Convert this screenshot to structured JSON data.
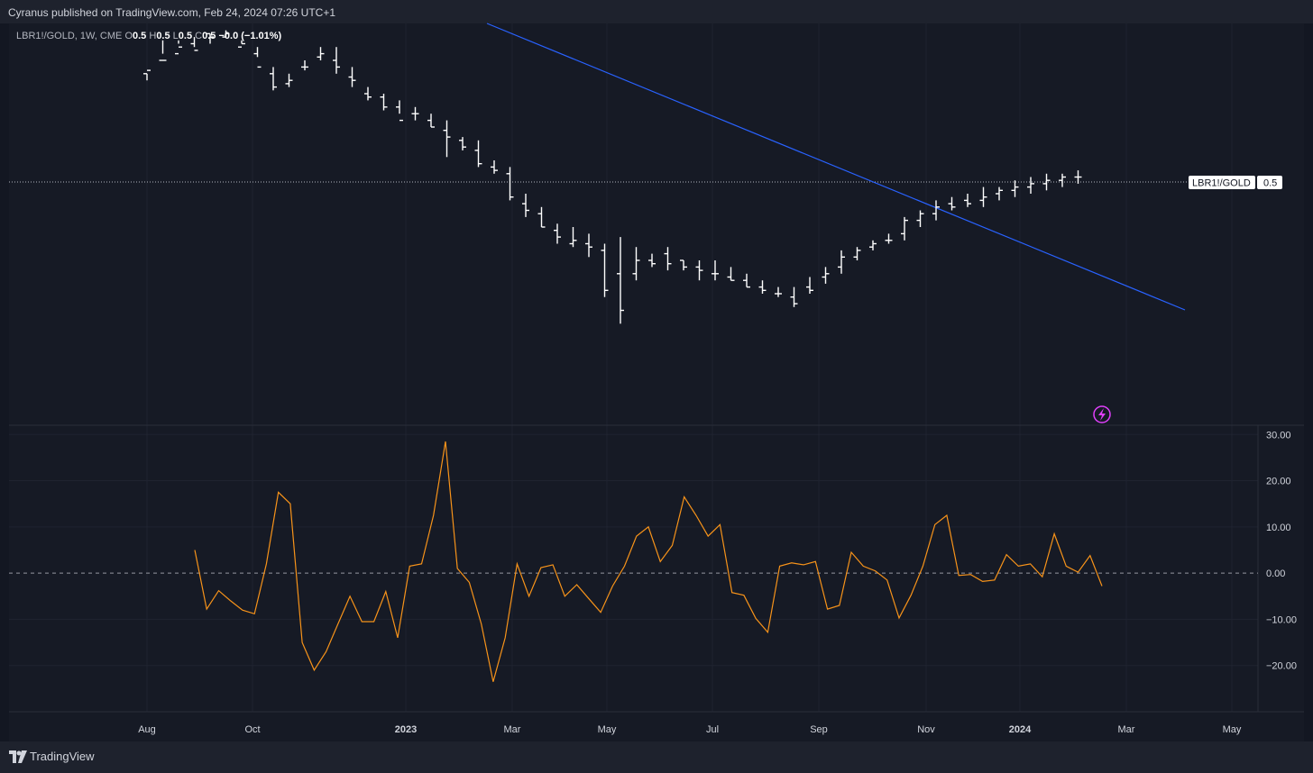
{
  "publisher": "Cyranus published on TradingView.com, Feb 24, 2024 07:26 UTC+1",
  "brand": "TradingView",
  "legend": {
    "symbol": "LBR1!/GOLD, 1W, CME",
    "o_label": "O",
    "o_value": "0.5",
    "h_label": "H",
    "h_value": "0.5",
    "l_label": "L",
    "l_value": "0.5",
    "c_label": "C",
    "c_value": "0.5",
    "change": "−0.0 (−1.01%)"
  },
  "price_label": {
    "name": "LBR1!/GOLD",
    "value": "0.5"
  },
  "colors": {
    "background": "#161a25",
    "bars": "#ffffff",
    "trendline": "#2962ff",
    "oscillator": "#f7931a",
    "grid": "#1f2330"
  },
  "icons": {
    "alert": "lightning-bolt-icon"
  },
  "chart_data": [
    {
      "type": "ohlc-bar",
      "symbol": "LBR1!/GOLD",
      "timeframe": "1W",
      "x_tick_labels": [
        "Aug",
        "Oct",
        "2023",
        "Mar",
        "May",
        "Jul",
        "Sep",
        "Nov",
        "2024",
        "Mar",
        "May"
      ],
      "last_value": 0.5,
      "bars_note": "weekly bars, relative values read from image (0 = lowest low, 100 = highest high)",
      "bars": [
        [
          86,
          86,
          84,
          87
        ],
        [
          90,
          96,
          92,
          90
        ],
        [
          92,
          96,
          95,
          94
        ],
        [
          95,
          97,
          94,
          93
        ],
        [
          98,
          98,
          95,
          97
        ],
        [
          97,
          99,
          97,
          98
        ],
        [
          94,
          96,
          95,
          95
        ],
        [
          92,
          94,
          91,
          88
        ],
        [
          86,
          88,
          81,
          82
        ],
        [
          83,
          86,
          82,
          84
        ],
        [
          88,
          90,
          87,
          88
        ],
        [
          91,
          94,
          90,
          92
        ],
        [
          90,
          94,
          86,
          88
        ],
        [
          85,
          88,
          82,
          84
        ],
        [
          80,
          82,
          78,
          79
        ],
        [
          79,
          80,
          75,
          76
        ],
        [
          76,
          78,
          74,
          72
        ],
        [
          74,
          76,
          72,
          74
        ],
        [
          72,
          74,
          70,
          70
        ],
        [
          69,
          72,
          61,
          67
        ],
        [
          66,
          67,
          63,
          64
        ],
        [
          63,
          66,
          58,
          59
        ],
        [
          58,
          60,
          56,
          57
        ],
        [
          56,
          58,
          48,
          49
        ],
        [
          47,
          50,
          43,
          45
        ],
        [
          44,
          46,
          40,
          40
        ],
        [
          39,
          41,
          35,
          37
        ],
        [
          35,
          40,
          34,
          36
        ],
        [
          35,
          38,
          31,
          34
        ],
        [
          33,
          35,
          19,
          21
        ],
        [
          26,
          37,
          11,
          15
        ],
        [
          26,
          34,
          24,
          30
        ],
        [
          30,
          32,
          28,
          29
        ],
        [
          32,
          34,
          27,
          29
        ],
        [
          30,
          30,
          27,
          28
        ],
        [
          28,
          30,
          24,
          27
        ],
        [
          26,
          30,
          24,
          26
        ],
        [
          25,
          28,
          24,
          24
        ],
        [
          24,
          26,
          22,
          22
        ],
        [
          22,
          24,
          20,
          21
        ],
        [
          20,
          22,
          19,
          20
        ],
        [
          19,
          22,
          16,
          17
        ],
        [
          22,
          25,
          20,
          21
        ],
        [
          25,
          28,
          23,
          26
        ],
        [
          28,
          33,
          26,
          31
        ],
        [
          31,
          34,
          30,
          33
        ],
        [
          34,
          36,
          33,
          35
        ],
        [
          36,
          38,
          35,
          36
        ],
        [
          38,
          43,
          36,
          42
        ],
        [
          42,
          45,
          40,
          44
        ],
        [
          44,
          48,
          42,
          46
        ],
        [
          47,
          49,
          45,
          46
        ],
        [
          48,
          50,
          46,
          47
        ],
        [
          48,
          52,
          46,
          49
        ],
        [
          50,
          52,
          48,
          51
        ],
        [
          51,
          54,
          49,
          52
        ],
        [
          52,
          55,
          50,
          53
        ],
        [
          53,
          56,
          51,
          54
        ],
        [
          54,
          56,
          52,
          55
        ],
        [
          55,
          57,
          53,
          55
        ]
      ]
    },
    {
      "type": "line",
      "series": [
        {
          "values": [
            5,
            -7.8,
            -3.8,
            -6,
            -8,
            -8.8,
            2,
            17.5,
            15,
            -15,
            -21,
            -17,
            -11,
            -5,
            -10.5,
            -10.5,
            -4,
            -14,
            1.5,
            2,
            12.5,
            28.5,
            1,
            -2,
            -11,
            -23.5,
            -14,
            2,
            -5,
            1.2,
            1.8,
            -5,
            -2.5,
            -5.5,
            -8.5,
            -2.8,
            1.5,
            8,
            10,
            2.5,
            6,
            16.5,
            12.5,
            8,
            10.5,
            -4.2,
            -4.8,
            -9.8,
            -12.8,
            1.5,
            2.2,
            1.8,
            2.5,
            -7.8,
            -7,
            4.5,
            1.5,
            0.5,
            -1.5,
            -9.7,
            -4.8,
            1.5,
            10.5,
            12.5,
            -0.5,
            -0.3,
            -1.8,
            -1.5,
            4,
            1.5,
            2,
            -0.8,
            8.5,
            1.5,
            0.2,
            3.8,
            -2.8
          ]
        }
      ],
      "y_tick_labels": [
        "30.00",
        "20.00",
        "10.00",
        "0.00",
        "−10.00",
        "−20.00"
      ],
      "ylim": [
        -30,
        32
      ],
      "zero_line": true
    }
  ]
}
